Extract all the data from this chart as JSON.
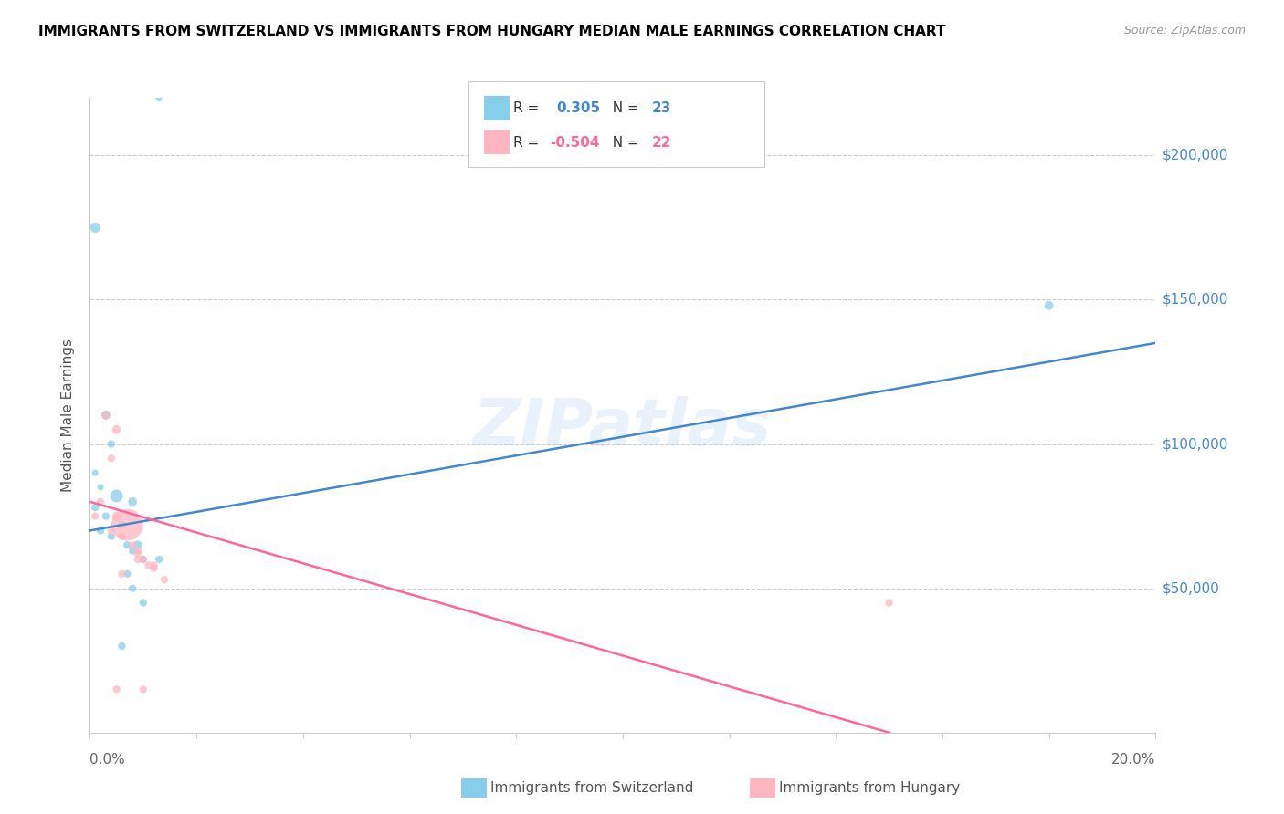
{
  "title": "IMMIGRANTS FROM SWITZERLAND VS IMMIGRANTS FROM HUNGARY MEDIAN MALE EARNINGS CORRELATION CHART",
  "source": "Source: ZipAtlas.com",
  "ylabel": "Median Male Earnings",
  "yticks": [
    50000,
    100000,
    150000,
    200000
  ],
  "ytick_labels": [
    "$50,000",
    "$100,000",
    "$150,000",
    "$200,000"
  ],
  "xlim": [
    0.0,
    0.2
  ],
  "ylim": [
    0,
    220000
  ],
  "watermark": "ZIPatlas",
  "swiss_color": "#87CEEB",
  "hungary_color": "#FFB6C1",
  "swiss_line_color": "#4488CC",
  "hungary_line_color": "#FF6699",
  "swiss_points": [
    [
      0.001,
      175000,
      8
    ],
    [
      0.013,
      220000,
      6
    ],
    [
      0.003,
      110000,
      7
    ],
    [
      0.004,
      100000,
      6
    ],
    [
      0.001,
      90000,
      5
    ],
    [
      0.002,
      85000,
      5
    ],
    [
      0.005,
      82000,
      10
    ],
    [
      0.008,
      80000,
      7
    ],
    [
      0.001,
      78000,
      6
    ],
    [
      0.003,
      75000,
      6
    ],
    [
      0.006,
      72000,
      6
    ],
    [
      0.002,
      70000,
      6
    ],
    [
      0.004,
      68000,
      6
    ],
    [
      0.007,
      65000,
      6
    ],
    [
      0.009,
      65000,
      7
    ],
    [
      0.008,
      63000,
      6
    ],
    [
      0.01,
      60000,
      6
    ],
    [
      0.013,
      60000,
      6
    ],
    [
      0.007,
      55000,
      6
    ],
    [
      0.008,
      50000,
      6
    ],
    [
      0.01,
      45000,
      6
    ],
    [
      0.006,
      30000,
      6
    ],
    [
      0.18,
      148000,
      7
    ]
  ],
  "hungary_points": [
    [
      0.003,
      110000,
      7
    ],
    [
      0.005,
      105000,
      7
    ],
    [
      0.004,
      95000,
      6
    ],
    [
      0.002,
      80000,
      6
    ],
    [
      0.005,
      75000,
      7
    ],
    [
      0.007,
      72000,
      25
    ],
    [
      0.004,
      70000,
      6
    ],
    [
      0.006,
      68000,
      6
    ],
    [
      0.008,
      65000,
      6
    ],
    [
      0.009,
      63000,
      6
    ],
    [
      0.009,
      62000,
      6
    ],
    [
      0.009,
      60000,
      6
    ],
    [
      0.01,
      60000,
      6
    ],
    [
      0.011,
      58000,
      6
    ],
    [
      0.012,
      58000,
      6
    ],
    [
      0.012,
      57000,
      6
    ],
    [
      0.006,
      55000,
      6
    ],
    [
      0.014,
      53000,
      6
    ],
    [
      0.005,
      15000,
      6
    ],
    [
      0.01,
      15000,
      6
    ],
    [
      0.15,
      45000,
      6
    ],
    [
      0.001,
      75000,
      6
    ]
  ],
  "swiss_regression": [
    0.0,
    0.2,
    70000,
    135000
  ],
  "hungary_regression_solid": [
    0.0,
    0.15,
    80000,
    0
  ],
  "hungary_regression_dash": [
    0.15,
    0.2,
    0,
    -33333
  ]
}
